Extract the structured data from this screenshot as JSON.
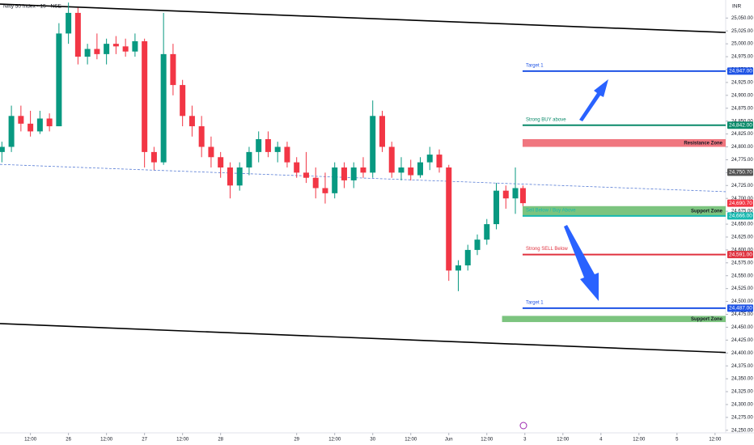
{
  "chart_data": {
    "type": "candlestick",
    "title": "Nifty 50 Index · 15 · NSE",
    "currency": "INR",
    "up_color": "#089981",
    "down_color": "#f23645",
    "x": [
      0.125,
      0.25,
      0.375,
      0.5,
      0.625,
      0.75,
      0.875,
      1.0,
      1.125,
      1.25,
      1.375,
      1.5,
      1.625,
      1.75,
      1.875,
      2.0,
      2.125,
      2.25,
      2.375,
      2.5,
      2.625,
      2.75,
      2.875,
      3.0,
      3.125,
      3.25,
      3.375,
      3.5,
      3.625,
      3.75,
      3.875,
      4.0,
      4.125,
      4.25,
      4.375,
      4.5,
      4.625,
      4.75,
      4.875,
      5.0,
      5.125,
      5.25,
      5.375,
      5.5,
      5.625,
      5.75,
      5.875,
      6.0,
      6.125,
      6.25,
      6.375,
      6.5,
      6.625,
      6.75,
      6.875,
      6.975
    ],
    "open": [
      24790,
      24800,
      24860,
      24845,
      24830,
      24855,
      24840,
      25020,
      25060,
      24975,
      24990,
      24980,
      25000,
      24995,
      24985,
      25005,
      24790,
      24770,
      24980,
      24920,
      24860,
      24840,
      24800,
      24780,
      24760,
      24725,
      24760,
      24790,
      24815,
      24790,
      24800,
      24770,
      24750,
      24740,
      24720,
      24710,
      24760,
      24735,
      24760,
      24750,
      24860,
      24800,
      24750,
      24760,
      24745,
      24770,
      24785,
      24760,
      24560,
      24570,
      24600,
      24620,
      24650,
      24715,
      24700,
      24720
    ],
    "high": [
      24810,
      24880,
      24880,
      24870,
      24870,
      24865,
      25040,
      25080,
      25070,
      25000,
      25020,
      25010,
      25015,
      25010,
      25020,
      25010,
      24800,
      25060,
      25000,
      24930,
      24880,
      24860,
      24820,
      24790,
      24770,
      24770,
      24800,
      24830,
      24830,
      24810,
      24810,
      24780,
      24790,
      24760,
      24750,
      24770,
      24770,
      24770,
      24780,
      24890,
      24870,
      24810,
      24780,
      24775,
      24780,
      24800,
      24795,
      24765,
      24580,
      24610,
      24630,
      24660,
      24730,
      24725,
      24760,
      24725
    ],
    "low": [
      24770,
      24790,
      24830,
      24820,
      24825,
      24830,
      24840,
      25000,
      24960,
      24960,
      24970,
      24960,
      24980,
      24975,
      24975,
      24760,
      24755,
      24765,
      24900,
      24840,
      24820,
      24780,
      24760,
      24740,
      24700,
      24715,
      24745,
      24770,
      24780,
      24770,
      24760,
      24740,
      24730,
      24700,
      24690,
      24700,
      24720,
      24720,
      24740,
      24740,
      24790,
      24740,
      24735,
      24735,
      24740,
      24755,
      24750,
      24540,
      24520,
      24560,
      24590,
      24610,
      24640,
      24680,
      24670,
      24685
    ],
    "close": [
      24800,
      24860,
      24845,
      24830,
      24855,
      24840,
      25020,
      25060,
      24975,
      24990,
      24980,
      25000,
      24995,
      24985,
      25005,
      24790,
      24770,
      24980,
      24920,
      24860,
      24840,
      24800,
      24780,
      24760,
      24725,
      24760,
      24790,
      24815,
      24790,
      24800,
      24770,
      24750,
      24740,
      24720,
      24710,
      24760,
      24735,
      24760,
      24750,
      24860,
      24800,
      24750,
      24760,
      24745,
      24770,
      24785,
      24760,
      24560,
      24570,
      24600,
      24620,
      24650,
      24715,
      24700,
      24720,
      24690.7
    ],
    "xlim": [
      0.1,
      9.64
    ],
    "ylim": [
      24245,
      25085
    ],
    "xticks": [
      {
        "value": 0.5,
        "label": "12:00"
      },
      {
        "value": 1,
        "label": "26"
      },
      {
        "value": 1.5,
        "label": "12:00"
      },
      {
        "value": 2,
        "label": "27"
      },
      {
        "value": 2.5,
        "label": "12:00"
      },
      {
        "value": 3,
        "label": "28"
      },
      {
        "value": 4,
        "label": "29"
      },
      {
        "value": 4.5,
        "label": "12:00"
      },
      {
        "value": 5,
        "label": "30"
      },
      {
        "value": 5.5,
        "label": "12:00"
      },
      {
        "value": 6,
        "label": "Jun"
      },
      {
        "value": 6.5,
        "label": "12:00"
      },
      {
        "value": 7,
        "label": "3"
      },
      {
        "value": 7.5,
        "label": "12:00"
      },
      {
        "value": 8,
        "label": "4"
      },
      {
        "value": 8.5,
        "label": "12:00"
      },
      {
        "value": 9,
        "label": "5"
      },
      {
        "value": 9.5,
        "label": "12:00"
      }
    ],
    "yticks": [
      {
        "value": 24250,
        "label": "24,250.00"
      },
      {
        "value": 24275,
        "label": "24,275.00"
      },
      {
        "value": 24300,
        "label": "24,300.00"
      },
      {
        "value": 24325,
        "label": "24,325.00"
      },
      {
        "value": 24350,
        "label": "24,350.00"
      },
      {
        "value": 24375,
        "label": "24,375.00"
      },
      {
        "value": 24400,
        "label": "24,400.00"
      },
      {
        "value": 24425,
        "label": "24,425.00"
      },
      {
        "value": 24450,
        "label": "24,450.00"
      },
      {
        "value": 24475,
        "label": "24,475.00"
      },
      {
        "value": 24500,
        "label": "24,500.00"
      },
      {
        "value": 24525,
        "label": "24,525.00"
      },
      {
        "value": 24550,
        "label": "24,550.00"
      },
      {
        "value": 24575,
        "label": "24,575.00"
      },
      {
        "value": 24600,
        "label": "24,600.00"
      },
      {
        "value": 24625,
        "label": "24,625.00"
      },
      {
        "value": 24650,
        "label": "24,650.00"
      },
      {
        "value": 24675,
        "label": "24,675.00"
      },
      {
        "value": 24700,
        "label": "24,700.00"
      },
      {
        "value": 24725,
        "label": "24,725.00"
      },
      {
        "value": 24750,
        "label": "24,750.00"
      },
      {
        "value": 24775,
        "label": "24,775.00"
      },
      {
        "value": 24800,
        "label": "24,800.00"
      },
      {
        "value": 24825,
        "label": "24,825.00"
      },
      {
        "value": 24850,
        "label": "24,850.00"
      },
      {
        "value": 24875,
        "label": "24,875.00"
      },
      {
        "value": 24900,
        "label": "24,900.00"
      },
      {
        "value": 24925,
        "label": "24,925.00"
      },
      {
        "value": 24950,
        "label": "24,950.00"
      },
      {
        "value": 24975,
        "label": "24,975.00"
      },
      {
        "value": 25000,
        "label": "25,000.00"
      },
      {
        "value": 25025,
        "label": "25,025.00"
      },
      {
        "value": 25050,
        "label": "25,050.00"
      }
    ],
    "trendlines": [
      {
        "x": [
          0.1,
          9.64
        ],
        "y": [
          25077,
          25022
        ],
        "color": "#000000",
        "dashed": false
      },
      {
        "x": [
          0.1,
          9.64
        ],
        "y": [
          24457,
          24401
        ],
        "color": "#000000",
        "dashed": false
      },
      {
        "x": [
          0.1,
          9.64
        ],
        "y": [
          24766,
          24713
        ],
        "color": "#5b7fd6",
        "dashed": true
      }
    ],
    "zones": [
      {
        "name": "Resistance Zone",
        "range": [
          24800,
          24815
        ],
        "x0": 6.97,
        "color": "#f0767f"
      },
      {
        "name": "Support Zone",
        "range": [
          24666,
          24685
        ],
        "x0": 6.97,
        "color": "#7cc47f"
      },
      {
        "name": "Support Zone",
        "range": [
          24460,
          24472
        ],
        "x0": 6.7,
        "color": "#7cc47f"
      }
    ],
    "levels": [
      {
        "name": "Target 1",
        "value": 24947,
        "value_label": "24,947.00",
        "x0": 6.97,
        "color": "#1e53e5"
      },
      {
        "name": "Strong BUY above",
        "value": 24842,
        "value_label": "24,842.00",
        "x0": 6.97,
        "color": "#0a8a6a"
      },
      {
        "name": "Sell Below / Buy Above",
        "value": 24666,
        "value_label": "24,666.00",
        "x0": 6.97,
        "color": "#17b8b0"
      },
      {
        "name": "Strong SELL Below",
        "value": 24591,
        "value_label": "24,591.00",
        "x0": 6.97,
        "color": "#e0323f"
      },
      {
        "name": "Target 1",
        "value": 24487,
        "value_label": "24,487.00",
        "x0": 6.97,
        "color": "#1e53e5"
      }
    ],
    "price_tags": [
      {
        "value": 24750.7,
        "label": "24,750.70",
        "color": "#555555"
      },
      {
        "value": 24690.7,
        "label": "24,690.70",
        "color": "#f23645"
      }
    ]
  }
}
